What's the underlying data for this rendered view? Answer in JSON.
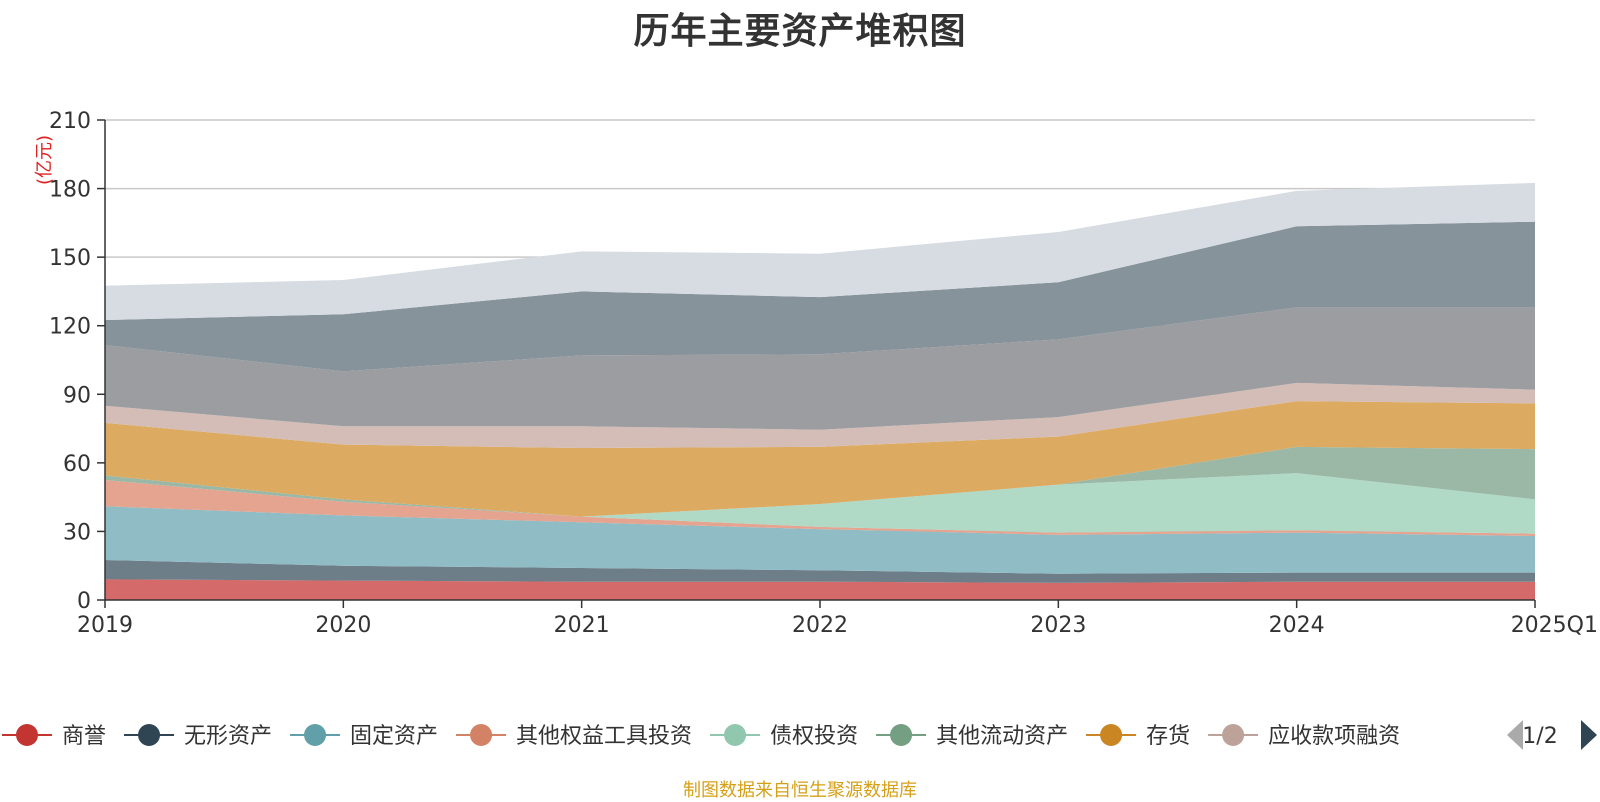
{
  "chart_data": {
    "type": "area",
    "stacked": true,
    "title": "历年主要资产堆积图",
    "unit_label": "(亿元)",
    "categories": [
      "2019",
      "2020",
      "2021",
      "2022",
      "2023",
      "2024",
      "2025Q1"
    ],
    "ylim": [
      0,
      210
    ],
    "yticks": [
      0,
      30,
      60,
      90,
      120,
      150,
      180,
      210
    ],
    "grid": true,
    "series": [
      {
        "name": "商誉",
        "color": "#d46a6a",
        "legend_color": "#c23531",
        "values": [
          9,
          8.5,
          8,
          8,
          7.5,
          8,
          8
        ]
      },
      {
        "name": "无形资产",
        "color": "#6e7e88",
        "legend_color": "#2f4554",
        "values": [
          8.5,
          6.5,
          6,
          5,
          4,
          4,
          4
        ]
      },
      {
        "name": "固定资产",
        "color": "#8fbcc5",
        "legend_color": "#61a0a8",
        "values": [
          23.5,
          22,
          20,
          18,
          17,
          17.5,
          16
        ]
      },
      {
        "name": "其他权益工具投资",
        "color": "#e4a490",
        "legend_color": "#d48265",
        "values": [
          11.5,
          6,
          2.5,
          1,
          1,
          1,
          1
        ]
      },
      {
        "name": "债权投资",
        "color": "#b0d9c6",
        "legend_color": "#91c7ae",
        "values": [
          0,
          0,
          0,
          10,
          21,
          25,
          15
        ]
      },
      {
        "name": "其他流动资产",
        "color": "#9bb8a6",
        "legend_color": "#749f83",
        "values": [
          2,
          1,
          0,
          0,
          0,
          11.5,
          22
        ]
      },
      {
        "name": "存货",
        "color": "#dcaa60",
        "legend_color": "#ca8622",
        "values": [
          23,
          24,
          30,
          25,
          21,
          20,
          20
        ]
      },
      {
        "name": "应收款项融资",
        "color": "#d4bdb7",
        "legend_color": "#bda29a",
        "values": [
          7.5,
          8,
          9.5,
          7.5,
          8.5,
          8,
          6
        ]
      },
      {
        "name": "",
        "color": "#9c9da0",
        "values": [
          26.5,
          24,
          31,
          33,
          34,
          33,
          36
        ]
      },
      {
        "name": "",
        "color": "#86939a",
        "values": [
          11,
          25,
          28,
          25,
          25,
          35.5,
          37.5
        ]
      },
      {
        "name": "",
        "color": "#d6dce2",
        "values": [
          15,
          15,
          17.5,
          19,
          22,
          15.5,
          17
        ]
      }
    ]
  },
  "legend": {
    "page_indicator": "1/2"
  },
  "source_note": "制图数据来自恒生聚源数据库"
}
